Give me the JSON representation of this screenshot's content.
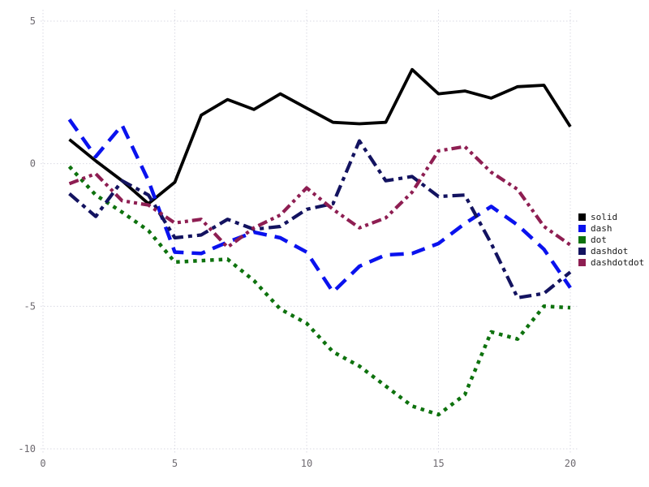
{
  "chart": {
    "title": "",
    "legend": {
      "position": "right-outside",
      "swatch_shape": "square"
    }
  },
  "chart_data": {
    "type": "line",
    "x": [
      1,
      2,
      3,
      4,
      5,
      6,
      7,
      8,
      9,
      10,
      11,
      12,
      13,
      14,
      15,
      16,
      17,
      18,
      19,
      20
    ],
    "series": [
      {
        "name": "solid",
        "line_style": "solid",
        "color": "#000000",
        "values": [
          0.85,
          0.1,
          -0.6,
          -1.4,
          -0.65,
          1.7,
          2.25,
          1.9,
          2.45,
          1.95,
          1.45,
          1.4,
          1.45,
          3.3,
          2.45,
          2.55,
          2.3,
          2.7,
          2.75,
          1.3
        ]
      },
      {
        "name": "dash",
        "line_style": "dash",
        "color": "#0a12ee",
        "values": [
          1.55,
          0.25,
          1.35,
          -0.6,
          -3.1,
          -3.15,
          -2.75,
          -2.4,
          -2.6,
          -3.1,
          -4.5,
          -3.6,
          -3.2,
          -3.15,
          -2.8,
          -2.1,
          -1.5,
          -2.15,
          -3.0,
          -4.35
        ]
      },
      {
        "name": "dot",
        "line_style": "dot",
        "color": "#0e720e",
        "values": [
          -0.1,
          -1.1,
          -1.7,
          -2.35,
          -3.45,
          -3.4,
          -3.35,
          -4.1,
          -5.1,
          -5.6,
          -6.6,
          -7.1,
          -7.8,
          -8.5,
          -8.8,
          -8.1,
          -5.9,
          -6.15,
          -5.0,
          -5.05
        ]
      },
      {
        "name": "dashdot",
        "line_style": "dashdot",
        "color": "#131360",
        "values": [
          -1.05,
          -1.85,
          -0.6,
          -1.1,
          -2.6,
          -2.5,
          -1.95,
          -2.3,
          -2.2,
          -1.6,
          -1.4,
          0.8,
          -0.6,
          -0.45,
          -1.15,
          -1.1,
          -2.8,
          -4.7,
          -4.55,
          -3.8
        ]
      },
      {
        "name": "dashdotdot",
        "line_style": "dashdotdot",
        "color": "#8e1e52",
        "values": [
          -0.7,
          -0.35,
          -1.3,
          -1.45,
          -2.08,
          -1.95,
          -2.93,
          -2.25,
          -1.8,
          -0.85,
          -1.6,
          -2.25,
          -1.9,
          -1.0,
          0.45,
          0.6,
          -0.3,
          -0.9,
          -2.2,
          -2.85
        ]
      }
    ],
    "xlabel": "",
    "ylabel": "",
    "xticks": [
      0,
      5,
      10,
      15,
      20
    ],
    "yticks": [
      5,
      0,
      -5,
      -10
    ],
    "xlim": [
      0,
      20.3
    ],
    "ylim": [
      -10.5,
      5.5
    ],
    "grid": "dotted",
    "grid_color": "#d9d9e3",
    "tick_label_color": "#6e6a70",
    "legend_entries": [
      "solid",
      "dash",
      "dot",
      "dashdot",
      "dashdotdot"
    ]
  }
}
